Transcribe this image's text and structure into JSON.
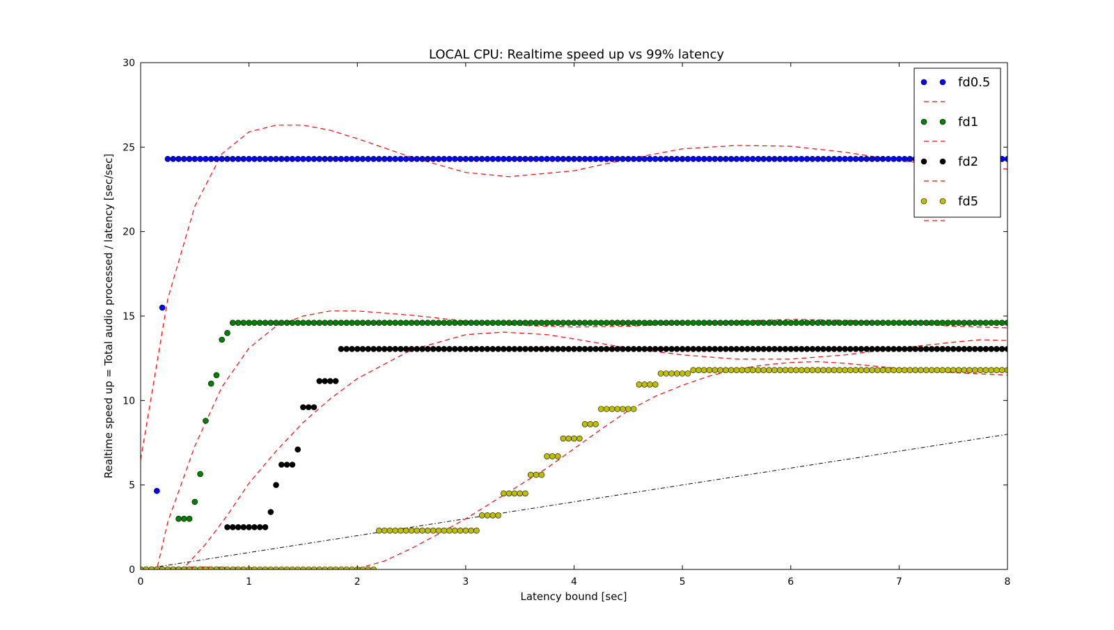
{
  "chart_data": {
    "type": "scatter",
    "title": "LOCAL CPU: Realtime speed up vs 99% latency",
    "xlabel": "Latency bound [sec]",
    "ylabel": "Realtime speed up = Total audio processed / latency [sec/sec]",
    "xlim": [
      0,
      8
    ],
    "ylim": [
      0,
      30
    ],
    "xticks": [
      "0",
      "1",
      "2",
      "3",
      "4",
      "5",
      "6",
      "7",
      "8"
    ],
    "yticks": [
      "0",
      "5",
      "10",
      "15",
      "20",
      "25",
      "30"
    ],
    "grid": false,
    "legend_position": "top-right",
    "legend": [
      "fd0.5",
      "fd1",
      "fd2",
      "fd5"
    ],
    "series": [
      {
        "name": "fd0.5",
        "color": "#0000ff",
        "points": [
          [
            0.0,
            0.0
          ],
          [
            0.15,
            4.65
          ],
          [
            0.2,
            15.5
          ]
        ],
        "plateau": {
          "y": 24.3,
          "from": 0.25,
          "to": 8.0
        },
        "fit": [
          [
            0.0,
            6.5
          ],
          [
            0.25,
            16.0
          ],
          [
            0.5,
            21.5
          ],
          [
            0.75,
            24.6
          ],
          [
            1.0,
            25.9
          ],
          [
            1.25,
            26.3
          ],
          [
            1.5,
            26.3
          ],
          [
            1.75,
            26.0
          ],
          [
            2.0,
            25.5
          ],
          [
            2.5,
            24.4
          ],
          [
            3.0,
            23.5
          ],
          [
            3.4,
            23.25
          ],
          [
            4.0,
            23.6
          ],
          [
            4.5,
            24.3
          ],
          [
            5.0,
            24.9
          ],
          [
            5.5,
            25.1
          ],
          [
            6.0,
            25.05
          ],
          [
            6.5,
            24.7
          ],
          [
            7.0,
            24.2
          ],
          [
            7.5,
            23.85
          ],
          [
            8.0,
            23.7
          ]
        ]
      },
      {
        "name": "fd1",
        "color": "#008000",
        "points": [
          [
            0.0,
            0.0
          ],
          [
            0.05,
            0.0
          ],
          [
            0.1,
            0.0
          ],
          [
            0.15,
            0.0
          ],
          [
            0.2,
            0.0
          ],
          [
            0.25,
            0.0
          ],
          [
            0.35,
            3.0
          ],
          [
            0.4,
            3.0
          ],
          [
            0.45,
            3.0
          ],
          [
            0.5,
            4.0
          ],
          [
            0.55,
            5.65
          ],
          [
            0.6,
            8.8
          ],
          [
            0.65,
            11.0
          ],
          [
            0.7,
            11.5
          ],
          [
            0.75,
            13.6
          ],
          [
            0.8,
            14.0
          ]
        ],
        "plateau": {
          "y": 14.6,
          "from": 0.85,
          "to": 8.0
        },
        "fit": [
          [
            0.1,
            0.0
          ],
          [
            0.15,
            0.0
          ],
          [
            0.25,
            2.8
          ],
          [
            0.5,
            7.3
          ],
          [
            0.75,
            10.8
          ],
          [
            1.0,
            13.1
          ],
          [
            1.25,
            14.4
          ],
          [
            1.5,
            15.0
          ],
          [
            1.75,
            15.3
          ],
          [
            2.0,
            15.3
          ],
          [
            2.5,
            15.05
          ],
          [
            3.0,
            14.7
          ],
          [
            3.5,
            14.45
          ],
          [
            4.0,
            14.35
          ],
          [
            4.5,
            14.4
          ],
          [
            5.0,
            14.55
          ],
          [
            5.5,
            14.7
          ],
          [
            6.0,
            14.8
          ],
          [
            6.5,
            14.75
          ],
          [
            7.0,
            14.6
          ],
          [
            7.5,
            14.4
          ],
          [
            8.0,
            14.3
          ]
        ]
      },
      {
        "name": "fd2",
        "color": "#000000",
        "points": [
          [
            0.0,
            0.0
          ],
          [
            0.05,
            0.0
          ],
          [
            0.1,
            0.0
          ],
          [
            0.15,
            0.0
          ],
          [
            0.2,
            0.0
          ],
          [
            0.25,
            0.0
          ],
          [
            0.3,
            0.0
          ],
          [
            0.35,
            0.0
          ],
          [
            0.4,
            0.0
          ],
          [
            0.45,
            0.0
          ],
          [
            0.5,
            0.0
          ],
          [
            0.55,
            0.0
          ],
          [
            0.6,
            0.0
          ],
          [
            0.65,
            0.0
          ],
          [
            0.7,
            0.0
          ],
          [
            0.75,
            0.0
          ],
          [
            0.8,
            2.5
          ],
          [
            0.85,
            2.5
          ],
          [
            0.9,
            2.5
          ],
          [
            0.95,
            2.5
          ],
          [
            1.0,
            2.5
          ],
          [
            1.05,
            2.5
          ],
          [
            1.1,
            2.5
          ],
          [
            1.15,
            2.5
          ],
          [
            1.2,
            3.4
          ],
          [
            1.25,
            5.0
          ],
          [
            1.3,
            6.2
          ],
          [
            1.35,
            6.2
          ],
          [
            1.4,
            6.2
          ],
          [
            1.45,
            7.1
          ],
          [
            1.5,
            9.6
          ],
          [
            1.55,
            9.6
          ],
          [
            1.6,
            9.6
          ],
          [
            1.65,
            11.15
          ],
          [
            1.7,
            11.15
          ],
          [
            1.75,
            11.15
          ],
          [
            1.8,
            11.15
          ]
        ],
        "plateau": {
          "y": 13.05,
          "from": 1.85,
          "to": 8.0
        },
        "fit": [
          [
            0.2,
            0.0
          ],
          [
            0.4,
            0.1
          ],
          [
            0.6,
            1.5
          ],
          [
            0.8,
            3.2
          ],
          [
            1.0,
            5.1
          ],
          [
            1.25,
            7.0
          ],
          [
            1.5,
            8.7
          ],
          [
            1.75,
            10.1
          ],
          [
            2.0,
            11.3
          ],
          [
            2.5,
            13.0
          ],
          [
            3.0,
            13.9
          ],
          [
            3.35,
            14.05
          ],
          [
            3.75,
            13.9
          ],
          [
            4.0,
            13.65
          ],
          [
            4.5,
            13.1
          ],
          [
            5.0,
            12.7
          ],
          [
            5.5,
            12.45
          ],
          [
            6.0,
            12.45
          ],
          [
            6.5,
            12.7
          ],
          [
            7.0,
            13.1
          ],
          [
            7.5,
            13.45
          ],
          [
            7.75,
            13.6
          ],
          [
            8.0,
            13.55
          ]
        ]
      },
      {
        "name": "fd5",
        "color": "#bfbf00",
        "points": [
          [
            0.0,
            0.0
          ],
          [
            0.05,
            0.0
          ],
          [
            0.1,
            0.0
          ],
          [
            0.15,
            0.0
          ],
          [
            0.2,
            0.0
          ],
          [
            0.25,
            0.0
          ],
          [
            0.3,
            0.0
          ],
          [
            0.35,
            0.0
          ],
          [
            0.4,
            0.0
          ],
          [
            0.45,
            0.0
          ],
          [
            0.5,
            0.0
          ],
          [
            0.55,
            0.0
          ],
          [
            0.6,
            0.0
          ],
          [
            0.65,
            0.0
          ],
          [
            0.7,
            0.0
          ],
          [
            0.75,
            0.0
          ],
          [
            0.8,
            0.0
          ],
          [
            0.85,
            0.0
          ],
          [
            0.9,
            0.0
          ],
          [
            0.95,
            0.0
          ],
          [
            1.0,
            0.0
          ],
          [
            1.05,
            0.0
          ],
          [
            1.1,
            0.0
          ],
          [
            1.15,
            0.0
          ],
          [
            1.2,
            0.0
          ],
          [
            1.25,
            0.0
          ],
          [
            1.3,
            0.0
          ],
          [
            1.35,
            0.0
          ],
          [
            1.4,
            0.0
          ],
          [
            1.45,
            0.0
          ],
          [
            1.5,
            0.0
          ],
          [
            1.55,
            0.0
          ],
          [
            1.6,
            0.0
          ],
          [
            1.65,
            0.0
          ],
          [
            1.7,
            0.0
          ],
          [
            1.75,
            0.0
          ],
          [
            1.8,
            0.0
          ],
          [
            1.85,
            0.0
          ],
          [
            1.9,
            0.0
          ],
          [
            1.95,
            0.0
          ],
          [
            2.0,
            0.0
          ],
          [
            2.05,
            0.0
          ],
          [
            2.1,
            0.0
          ],
          [
            2.15,
            0.0
          ],
          [
            2.2,
            2.3
          ],
          [
            2.25,
            2.3
          ],
          [
            2.3,
            2.3
          ],
          [
            2.35,
            2.3
          ],
          [
            2.4,
            2.3
          ],
          [
            2.45,
            2.3
          ],
          [
            2.5,
            2.3
          ],
          [
            2.55,
            2.3
          ],
          [
            2.6,
            2.3
          ],
          [
            2.65,
            2.3
          ],
          [
            2.7,
            2.3
          ],
          [
            2.75,
            2.3
          ],
          [
            2.8,
            2.3
          ],
          [
            2.85,
            2.3
          ],
          [
            2.9,
            2.3
          ],
          [
            2.95,
            2.3
          ],
          [
            3.0,
            2.3
          ],
          [
            3.05,
            2.3
          ],
          [
            3.1,
            2.3
          ],
          [
            3.15,
            3.2
          ],
          [
            3.2,
            3.2
          ],
          [
            3.25,
            3.2
          ],
          [
            3.3,
            3.2
          ],
          [
            3.35,
            4.5
          ],
          [
            3.4,
            4.5
          ],
          [
            3.45,
            4.5
          ],
          [
            3.5,
            4.5
          ],
          [
            3.55,
            4.5
          ],
          [
            3.6,
            5.6
          ],
          [
            3.65,
            5.6
          ],
          [
            3.7,
            5.6
          ],
          [
            3.75,
            6.7
          ],
          [
            3.8,
            6.7
          ],
          [
            3.85,
            6.7
          ],
          [
            3.9,
            7.75
          ],
          [
            3.95,
            7.75
          ],
          [
            4.0,
            7.75
          ],
          [
            4.05,
            7.75
          ],
          [
            4.1,
            8.6
          ],
          [
            4.15,
            8.6
          ],
          [
            4.2,
            8.6
          ],
          [
            4.25,
            9.5
          ],
          [
            4.3,
            9.5
          ],
          [
            4.35,
            9.5
          ],
          [
            4.4,
            9.5
          ],
          [
            4.45,
            9.5
          ],
          [
            4.5,
            9.5
          ],
          [
            4.55,
            9.5
          ],
          [
            4.6,
            10.95
          ],
          [
            4.65,
            10.95
          ],
          [
            4.7,
            10.95
          ],
          [
            4.75,
            10.95
          ],
          [
            4.8,
            11.6
          ],
          [
            4.85,
            11.6
          ],
          [
            4.9,
            11.6
          ],
          [
            4.95,
            11.6
          ],
          [
            5.0,
            11.6
          ],
          [
            5.05,
            11.6
          ]
        ],
        "plateau": {
          "y": 11.8,
          "from": 5.1,
          "to": 8.0
        },
        "fit": [
          [
            0.0,
            0.0
          ],
          [
            0.5,
            0.15
          ],
          [
            1.0,
            0.1
          ],
          [
            1.5,
            0.0
          ],
          [
            1.9,
            0.0
          ],
          [
            2.0,
            0.05
          ],
          [
            2.25,
            0.5
          ],
          [
            2.5,
            1.25
          ],
          [
            2.75,
            2.1
          ],
          [
            3.0,
            3.0
          ],
          [
            3.25,
            4.0
          ],
          [
            3.5,
            5.0
          ],
          [
            3.75,
            6.0
          ],
          [
            4.0,
            7.15
          ],
          [
            4.25,
            8.3
          ],
          [
            4.5,
            9.4
          ],
          [
            4.75,
            10.25
          ],
          [
            5.0,
            10.9
          ],
          [
            5.25,
            11.45
          ],
          [
            5.5,
            11.85
          ],
          [
            5.75,
            12.1
          ],
          [
            6.0,
            12.25
          ],
          [
            6.25,
            12.3
          ],
          [
            6.5,
            12.2
          ],
          [
            6.75,
            12.05
          ],
          [
            7.0,
            11.9
          ],
          [
            7.5,
            11.65
          ],
          [
            8.0,
            11.5
          ]
        ]
      }
    ],
    "reference_line": {
      "style": "dash-dot",
      "color": "#000000",
      "from": [
        0,
        0
      ],
      "to": [
        8,
        8
      ]
    },
    "fit_style": {
      "color": "#ff0000",
      "dash": "dashed"
    }
  }
}
